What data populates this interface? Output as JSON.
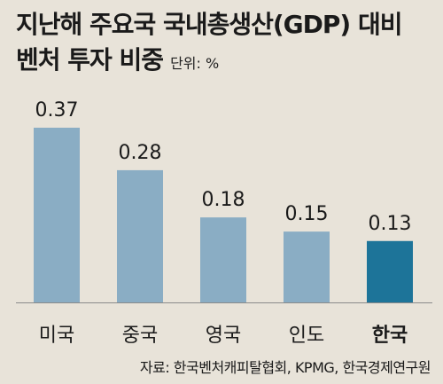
{
  "header": {
    "title_line1": "지난해 주요국 국내총생산(GDP) 대비",
    "title_line2": "벤처 투자 비중",
    "unit": "단위: %"
  },
  "source": "자료: 한국벤처캐피탈협회, KPMG, 한국경제연구원",
  "colors": {
    "bar": "#8aadc4",
    "highlight": "#1d7499",
    "background": "#e8e3d9"
  },
  "chart_data": {
    "type": "bar",
    "categories": [
      "미국",
      "중국",
      "영국",
      "인도",
      "한국"
    ],
    "values": [
      0.37,
      0.28,
      0.18,
      0.15,
      0.13
    ],
    "value_labels": [
      "0.37",
      "0.28",
      "0.18",
      "0.15",
      "0.13"
    ],
    "highlight_category": "한국",
    "title": "지난해 주요국 국내총생산(GDP) 대비 벤처 투자 비중",
    "ylabel": "단위: %",
    "ylim": [
      0,
      0.37
    ],
    "grid": false,
    "legend": "none"
  }
}
